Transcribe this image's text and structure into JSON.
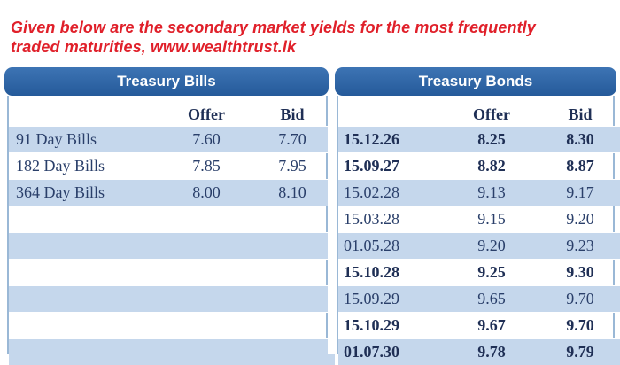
{
  "intro": {
    "line1": "Given below are the secondary market yields for the most frequently",
    "line2": "traded maturities,  www.wealthtrust.lk"
  },
  "bills": {
    "title": "Treasury Bills",
    "headers": [
      "",
      "Offer",
      "Bid"
    ],
    "rows": [
      {
        "label": "91 Day Bills",
        "offer": "7.60",
        "bid": "7.70"
      },
      {
        "label": "182 Day Bills",
        "offer": "7.85",
        "bid": "7.95"
      },
      {
        "label": "364 Day Bills",
        "offer": "8.00",
        "bid": "8.10"
      }
    ]
  },
  "bonds": {
    "title": "Treasury Bonds",
    "headers": [
      "",
      "Offer",
      "Bid"
    ],
    "rows": [
      {
        "maturity": "15.12.26",
        "offer": "8.25",
        "bid": "8.30",
        "bold": true
      },
      {
        "maturity": "15.09.27",
        "offer": "8.82",
        "bid": "8.87",
        "bold": true
      },
      {
        "maturity": "15.02.28",
        "offer": "9.13",
        "bid": "9.17",
        "bold": false
      },
      {
        "maturity": "15.03.28",
        "offer": "9.15",
        "bid": "9.20",
        "bold": false
      },
      {
        "maturity": "01.05.28",
        "offer": "9.20",
        "bid": "9.23",
        "bold": false
      },
      {
        "maturity": "15.10.28",
        "offer": "9.25",
        "bid": "9.30",
        "bold": true
      },
      {
        "maturity": "15.09.29",
        "offer": "9.65",
        "bid": "9.70",
        "bold": false
      },
      {
        "maturity": "15.10.29",
        "offer": "9.67",
        "bid": "9.70",
        "bold": true
      },
      {
        "maturity": "01.07.30",
        "offer": "9.78",
        "bid": "9.79",
        "bold": true
      }
    ]
  },
  "colors": {
    "intro_text": "#e0202a",
    "header_bar": "#2e65a6",
    "stripe": "#c5d7ec"
  }
}
